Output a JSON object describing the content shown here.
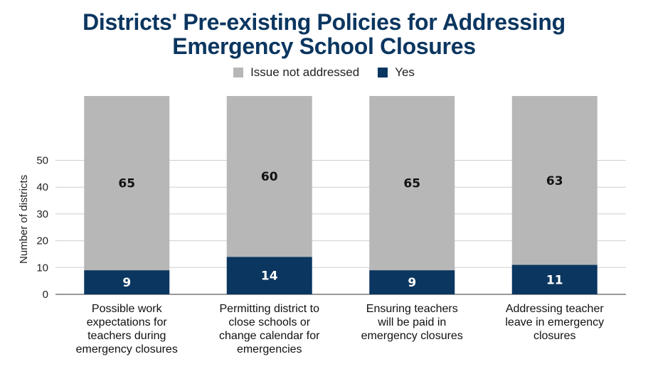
{
  "chart_data": {
    "type": "bar",
    "stacked": true,
    "title_lines": [
      "Districts' Pre-existing Policies for Addressing",
      "Emergency School Closures"
    ],
    "categories": [
      [
        "Possible work",
        "expectations for",
        "teachers during",
        "emergency closures"
      ],
      [
        "Permitting district to",
        "close schools or",
        "change calendar for",
        "emergencies"
      ],
      [
        "Ensuring teachers",
        "will be paid in",
        "emergency closures"
      ],
      [
        "Addressing teacher",
        "leave in emergency",
        "closures"
      ]
    ],
    "series": [
      {
        "name": "Yes",
        "color": "#0b3660",
        "label_color": "#ffffff",
        "values": [
          9,
          14,
          9,
          11
        ]
      },
      {
        "name": "Issue not addressed",
        "color": "#b7b7b7",
        "label_color": "#111111",
        "values": [
          65,
          60,
          65,
          63
        ]
      }
    ],
    "legend_order": [
      "Issue not addressed",
      "Yes"
    ],
    "ylabel": "Number of districts",
    "xlabel": "",
    "yticks": [
      0,
      10,
      20,
      30,
      40,
      50
    ],
    "grid": true,
    "legend_position": "top-center"
  }
}
